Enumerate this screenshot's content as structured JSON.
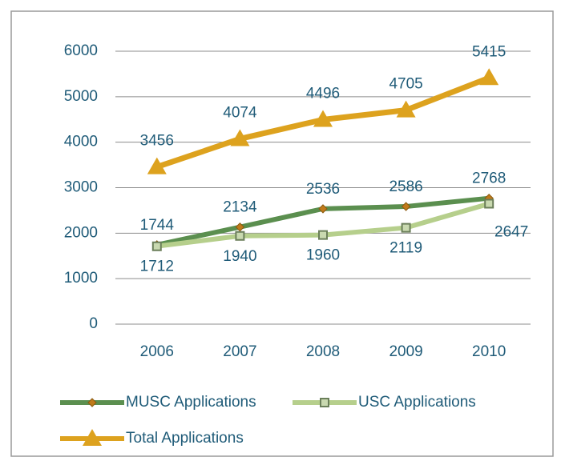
{
  "chart_data": {
    "type": "line",
    "categories": [
      "2006",
      "2007",
      "2008",
      "2009",
      "2010"
    ],
    "series": [
      {
        "name": "MUSC Applications",
        "color": "#5b8f4f",
        "marker": "diamond",
        "values": [
          1744,
          2134,
          2536,
          2586,
          2768
        ]
      },
      {
        "name": "USC Applications",
        "color": "#b6cf8c",
        "marker": "square",
        "values": [
          1712,
          1940,
          1960,
          2119,
          2647
        ]
      },
      {
        "name": "Total Applications",
        "color": "#dda21e",
        "marker": "triangle",
        "values": [
          3456,
          4074,
          4496,
          4705,
          5415
        ]
      }
    ],
    "ylim": [
      0,
      6000
    ],
    "yticks": [
      0,
      1000,
      2000,
      3000,
      4000,
      5000,
      6000
    ],
    "grid": true,
    "legend": "bottom"
  }
}
